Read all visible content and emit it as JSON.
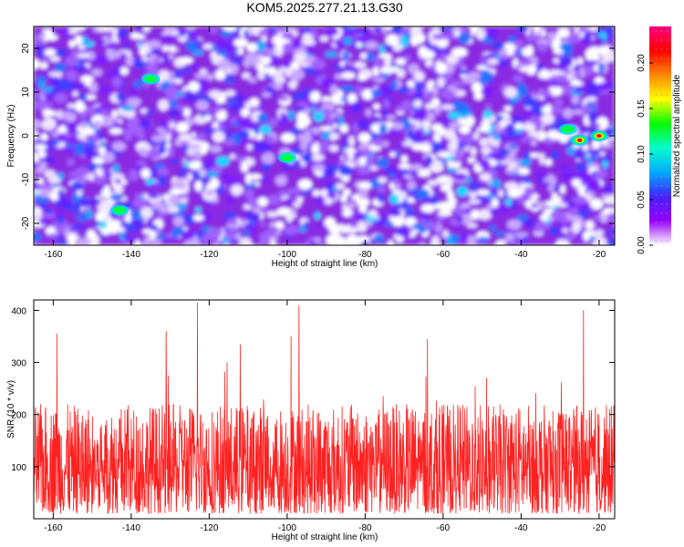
{
  "title": "KOM5.2025.277.21.13.G30",
  "chart_data": [
    {
      "type": "heatmap",
      "xlabel": "Height of straight line (km)",
      "ylabel": "Frequency (Hz)",
      "xlim": [
        -165,
        -16
      ],
      "ylim": [
        -25,
        25
      ],
      "x_ticks": [
        -160,
        -140,
        -120,
        -100,
        -80,
        -60,
        -40,
        -20
      ],
      "y_ticks": [
        -20,
        -10,
        0,
        10,
        20
      ],
      "colorbar": {
        "label": "Normalized spectral amplitude",
        "range": [
          0,
          0.24
        ],
        "ticks": [
          "0.00",
          "0.05",
          "0.10",
          "0.15",
          "0.20"
        ]
      },
      "colormap": [
        "#ffffff",
        "#9900ff",
        "#4422ff",
        "#00aaff",
        "#00ffcc",
        "#00ff00",
        "#ffff00",
        "#ff8800",
        "#ff0000",
        "#ff0080"
      ],
      "background_level": 0.04,
      "highlights": [
        {
          "x": -135,
          "y": 13,
          "value": 0.11
        },
        {
          "x": -100,
          "y": -5,
          "value": 0.1
        },
        {
          "x": -143,
          "y": -17,
          "value": 0.09
        },
        {
          "x": -28,
          "y": 1.5,
          "value": 0.12
        },
        {
          "x": -25,
          "y": -1,
          "value": 0.2
        },
        {
          "x": -20,
          "y": 0,
          "value": 0.22
        }
      ]
    },
    {
      "type": "line",
      "xlabel": "Height of straight line (km)",
      "ylabel": "SNR (10 * v/v)",
      "xlim": [
        -165,
        -16
      ],
      "ylim": [
        0,
        420
      ],
      "x_ticks": [
        -160,
        -140,
        -120,
        -100,
        -80,
        -60,
        -40,
        -20
      ],
      "y_ticks": [
        100,
        200,
        300,
        400
      ],
      "color": "#ff2020",
      "mean_level": 110,
      "peaks": [
        {
          "x": -123,
          "y": 415
        },
        {
          "x": -97,
          "y": 410
        },
        {
          "x": -24,
          "y": 400
        },
        {
          "x": -131,
          "y": 360
        },
        {
          "x": -159,
          "y": 355
        },
        {
          "x": -99,
          "y": 350
        },
        {
          "x": -64,
          "y": 345
        },
        {
          "x": -112,
          "y": 335
        }
      ]
    }
  ]
}
